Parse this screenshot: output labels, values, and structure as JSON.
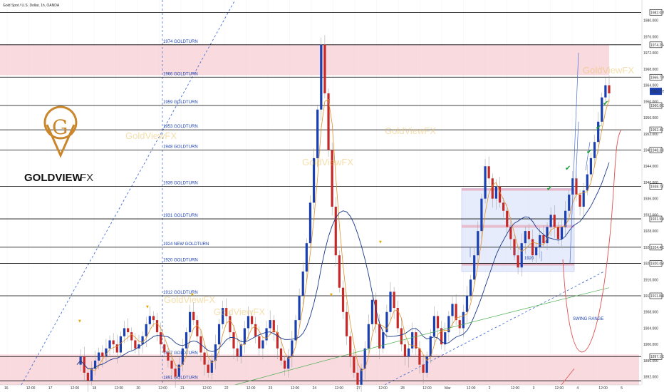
{
  "header": {
    "title": "Gold Spot / U.S. Dollar, 1h, OANDA"
  },
  "brand": {
    "name": "GOLDVIEW",
    "suffix": "FX",
    "color": "#c9862a"
  },
  "watermark": "GoldViewFX",
  "colors": {
    "bull": "#1a3fb0",
    "bear": "#c62828",
    "level": "#000000",
    "pink_zone": "#f6cdd4",
    "blue_box": "#dfe6fb",
    "ma_blue": "#1a3a8a",
    "ma_orange": "#e0922a",
    "ma_green": "#4caf50",
    "check": "#1e9e3a"
  },
  "chart_data": {
    "type": "candlestick",
    "title": "Gold Spot / U.S. Dollar, 1h, OANDA",
    "ylim": [
      1890,
      1984
    ],
    "y_ticks": [
      "1980.000",
      "1976.000",
      "1972.000",
      "1968.000",
      "1964.000",
      "1960.000",
      "1956.000",
      "1952.000",
      "1948.000",
      "1944.000",
      "1940.000",
      "1936.000",
      "1932.000",
      "1928.000",
      "1924.000",
      "1920.000",
      "1916.000",
      "1912.000",
      "1908.000",
      "1904.000",
      "1900.000",
      "1896.000",
      "1892.000"
    ],
    "x_ticks": [
      "16",
      "12:00",
      "17",
      "12:00",
      "18",
      "12:00",
      "20",
      "12:00",
      "21",
      "12:00",
      "22",
      "12:00",
      "23",
      "12:00",
      "24",
      "12:00",
      "27",
      "12:00",
      "28",
      "12:00",
      "Mar",
      "12:00",
      "2",
      "12:00",
      "3",
      "12:00",
      "4",
      "12:00",
      "5"
    ],
    "levels": [
      {
        "price": 1974,
        "label": "1974 GOLDTURN",
        "tag": "1974.254"
      },
      {
        "price": 1966,
        "label": "1966 GOLDTURN",
        "tag": "1966.770"
      },
      {
        "price": 1959,
        "label": "1959 GOLDTURN",
        "tag": "1960.002"
      },
      {
        "price": 1953,
        "label": "1953 GOLDTURN",
        "tag": "1952.457"
      },
      {
        "price": 1948,
        "label": "1948 GOLDTURN",
        "tag": "1948.333"
      },
      {
        "price": 1939,
        "label": "1939 GOLDTURN",
        "tag": "1938.737"
      },
      {
        "price": 1931,
        "label": "1931 GOLDTURN",
        "tag": "1931.516"
      },
      {
        "price": 1924,
        "label": "1924 NEW GOLDTURN",
        "tag": "1924.402"
      },
      {
        "price": 1920,
        "label": "1920 GOLDTURN",
        "tag": "1920.059"
      },
      {
        "price": 1912,
        "label": "1912 GOLDTURN",
        "tag": "1911.840"
      },
      {
        "price": 1897,
        "label": "1897 GOLDTURN",
        "tag": "1897.192"
      },
      {
        "price": 1891,
        "label": "1891 GOLDTURN",
        "tag": ""
      }
    ],
    "top_level_tag": "1982.025",
    "current_price": {
      "price": 1962.5,
      "tag": "1961.775"
    },
    "annotations": [
      "1920",
      "SWING RANGE"
    ],
    "series_close": [
      1895,
      1897,
      1893,
      1891,
      1894,
      1896,
      1898,
      1897,
      1899,
      1901,
      1900,
      1898,
      1902,
      1904,
      1903,
      1901,
      1899,
      1900,
      1902,
      1905,
      1907,
      1906,
      1903,
      1900,
      1898,
      1896,
      1894,
      1892,
      1895,
      1899,
      1903,
      1908,
      1906,
      1902,
      1898,
      1895,
      1893,
      1896,
      1900,
      1905,
      1909,
      1907,
      1903,
      1899,
      1897,
      1900,
      1904,
      1907,
      1905,
      1902,
      1899,
      1901,
      1904,
      1906,
      1903,
      1899,
      1896,
      1894,
      1897,
      1901,
      1906,
      1912,
      1918,
      1925,
      1935,
      1946,
      1958,
      1974,
      1962,
      1948,
      1934,
      1922,
      1914,
      1908,
      1902,
      1897,
      1893,
      1890,
      1894,
      1899,
      1905,
      1911,
      1905,
      1899,
      1903,
      1908,
      1913,
      1909,
      1904,
      1900,
      1897,
      1899,
      1903,
      1899,
      1895,
      1893,
      1897,
      1902,
      1907,
      1904,
      1900,
      1903,
      1907,
      1910,
      1906,
      1904,
      1908,
      1912,
      1916,
      1922,
      1928,
      1936,
      1944,
      1941,
      1936,
      1939,
      1935,
      1933,
      1929,
      1926,
      1922,
      1919,
      1925,
      1928,
      1926,
      1922,
      1924,
      1927,
      1925,
      1929,
      1932,
      1929,
      1926,
      1929,
      1933,
      1937,
      1941,
      1937,
      1934,
      1938,
      1942,
      1946,
      1950,
      1955,
      1961,
      1964,
      1962
    ]
  }
}
